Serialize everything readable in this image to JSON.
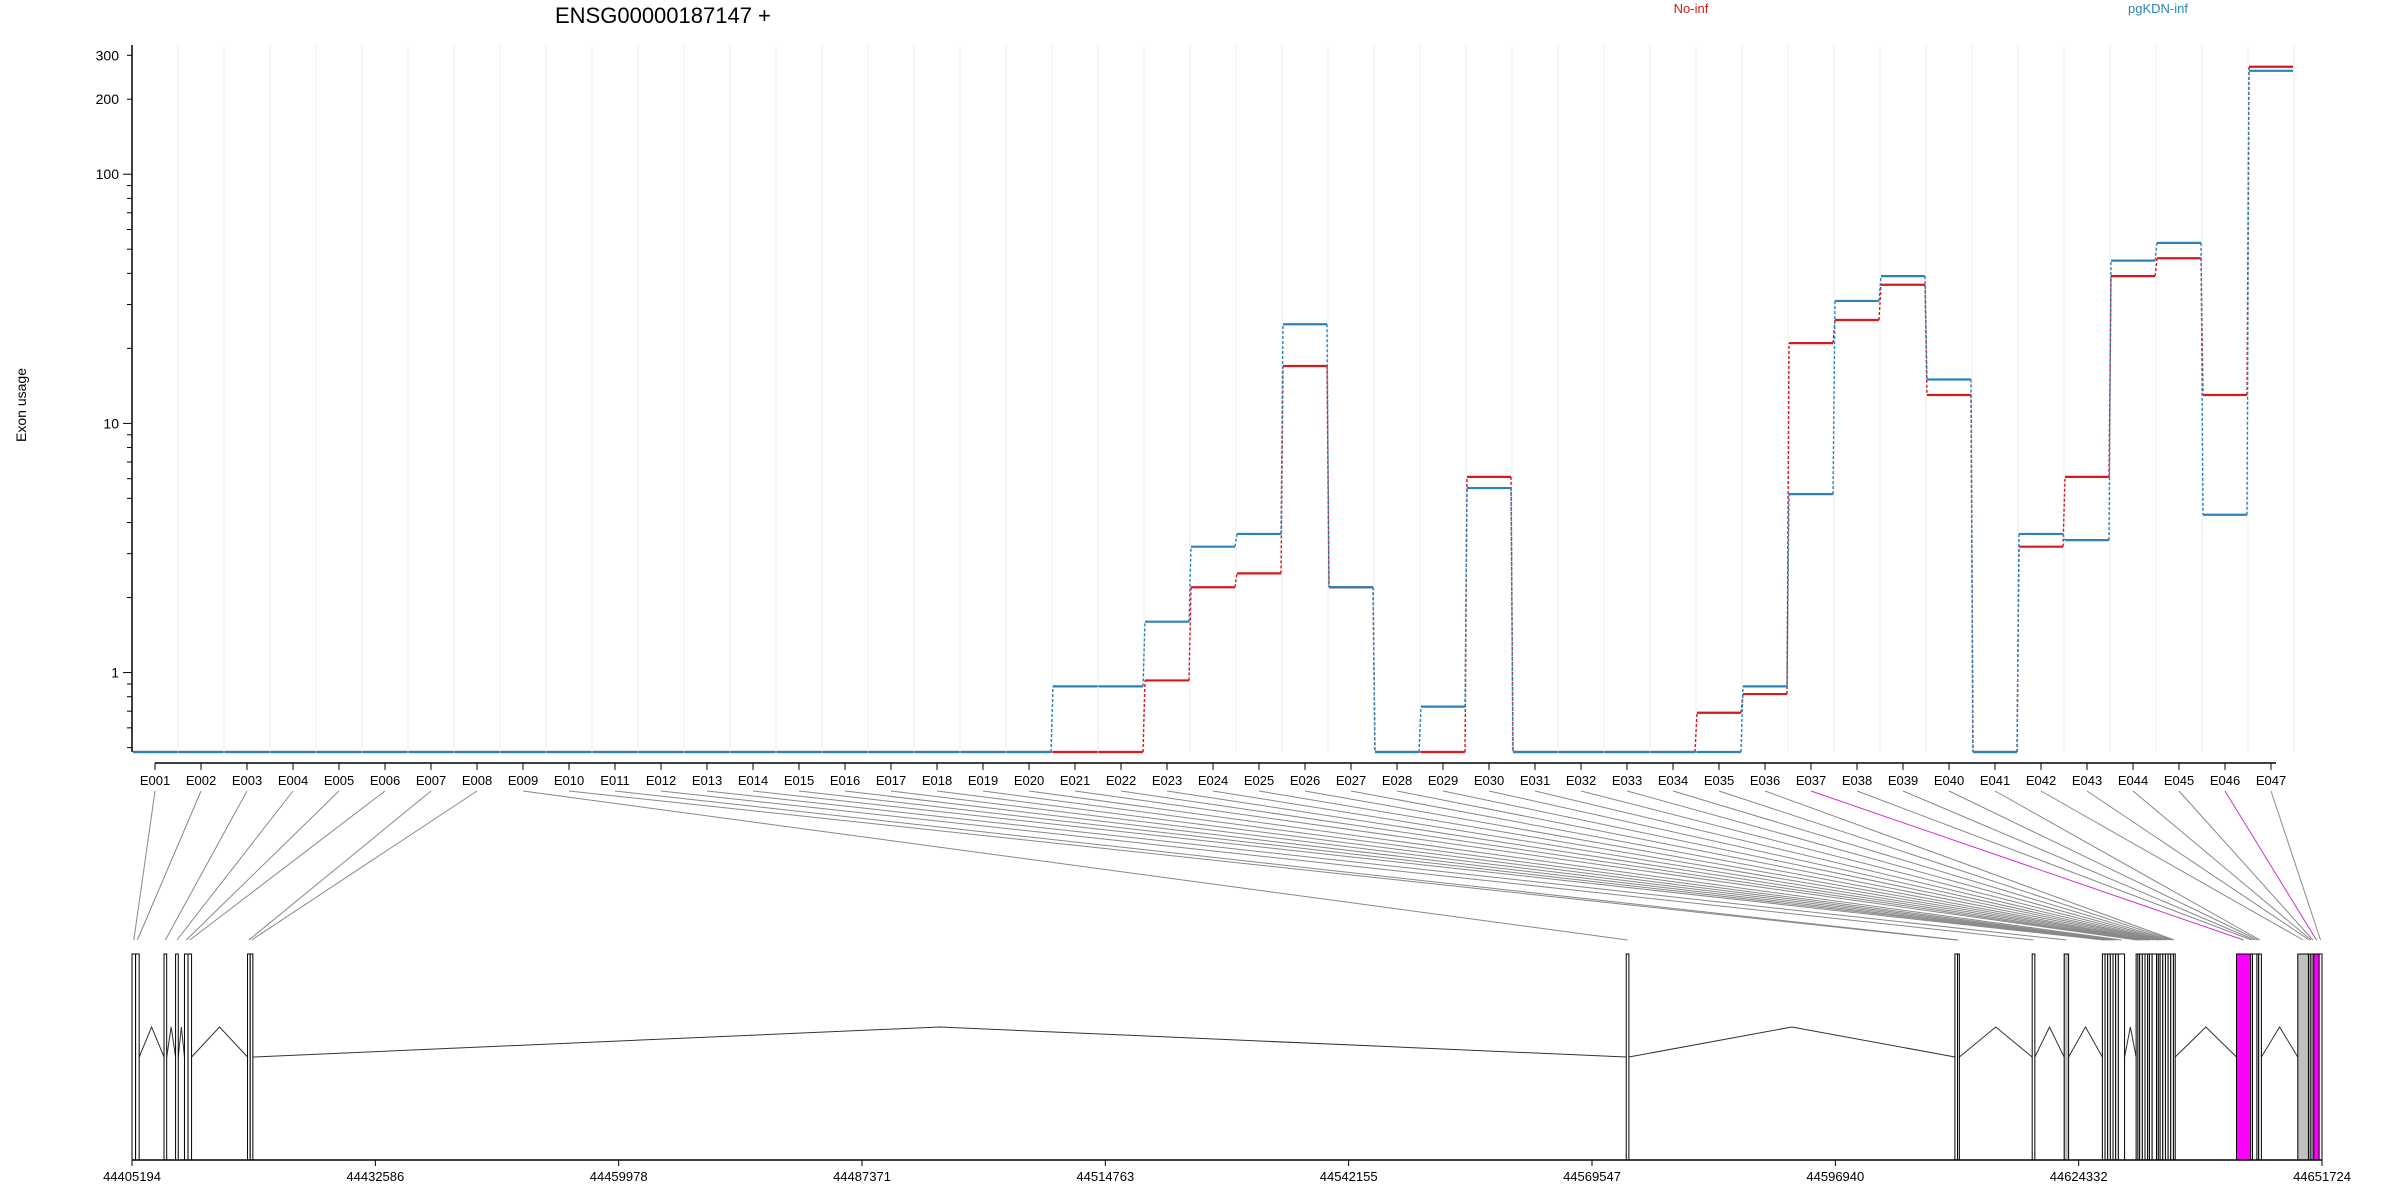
{
  "chart_data": {
    "type": "line",
    "title": "ENSG00000187147 +",
    "ylabel": "Exon usage",
    "xlabel": "",
    "y_scale": "log",
    "ylim": [
      0.48,
      330
    ],
    "y_ticks": [
      1,
      10,
      100,
      200,
      300
    ],
    "legend_placement": "top",
    "grid": true,
    "categories": [
      "E001",
      "E002",
      "E003",
      "E004",
      "E005",
      "E006",
      "E007",
      "E008",
      "E009",
      "E010",
      "E011",
      "E012",
      "E013",
      "E014",
      "E015",
      "E016",
      "E017",
      "E018",
      "E019",
      "E020",
      "E021",
      "E022",
      "E023",
      "E024",
      "E025",
      "E026",
      "E027",
      "E028",
      "E029",
      "E030",
      "E031",
      "E032",
      "E033",
      "E034",
      "E035",
      "E036",
      "E037",
      "E038",
      "E039",
      "E040",
      "E041",
      "E042",
      "E043",
      "E044",
      "E045",
      "E046",
      "E047"
    ],
    "series": [
      {
        "name": "No-inf",
        "color": "#d7191c",
        "values": [
          0.48,
          0.48,
          0.48,
          0.48,
          0.48,
          0.48,
          0.48,
          0.48,
          0.48,
          0.48,
          0.48,
          0.48,
          0.48,
          0.48,
          0.48,
          0.48,
          0.48,
          0.48,
          0.48,
          0.48,
          0.48,
          0.48,
          0.93,
          2.2,
          2.5,
          17,
          2.2,
          0.48,
          0.48,
          6.1,
          0.48,
          0.48,
          0.48,
          0.48,
          0.69,
          0.82,
          21,
          26,
          36,
          13,
          0.48,
          3.2,
          6.1,
          39,
          46,
          13,
          270
        ]
      },
      {
        "name": "pgKDN-inf",
        "color": "#2b83ba",
        "values": [
          0.48,
          0.48,
          0.48,
          0.48,
          0.48,
          0.48,
          0.48,
          0.48,
          0.48,
          0.48,
          0.48,
          0.48,
          0.48,
          0.48,
          0.48,
          0.48,
          0.48,
          0.48,
          0.48,
          0.48,
          0.88,
          0.88,
          1.6,
          3.2,
          3.6,
          25,
          2.2,
          0.48,
          0.73,
          5.5,
          0.48,
          0.48,
          0.48,
          0.48,
          0.48,
          0.88,
          5.2,
          31,
          39,
          15,
          0.48,
          3.6,
          3.4,
          45,
          53,
          4.3,
          260
        ]
      }
    ],
    "genomic_axis": {
      "tick_labels": [
        "44405194",
        "44432586",
        "44459978",
        "44487371",
        "44514763",
        "44542155",
        "44569547",
        "44596940",
        "44624332",
        "44651724"
      ],
      "range": [
        44405194,
        44651724
      ]
    },
    "exon_track": {
      "exons": [
        {
          "id": "E001",
          "start": 44405194,
          "end": 44405600
        },
        {
          "id": "E002",
          "start": 44405600,
          "end": 44406000
        },
        {
          "id": "E003",
          "start": 44408800,
          "end": 44409100
        },
        {
          "id": "E004",
          "start": 44410100,
          "end": 44410400
        },
        {
          "id": "E005",
          "start": 44411100,
          "end": 44411500
        },
        {
          "id": "E006",
          "start": 44411500,
          "end": 44411900
        },
        {
          "id": "E007",
          "start": 44418200,
          "end": 44418500
        },
        {
          "id": "E008",
          "start": 44418500,
          "end": 44418800
        },
        {
          "id": "E009",
          "start": 44573400,
          "end": 44573700
        },
        {
          "id": "E010",
          "start": 44610400,
          "end": 44610700
        },
        {
          "id": "E011",
          "start": 44610700,
          "end": 44610900
        },
        {
          "id": "E012",
          "start": 44619100,
          "end": 44619400
        },
        {
          "id": "E013",
          "start": 44622700,
          "end": 44623200
        },
        {
          "id": "E014",
          "start": 44627000,
          "end": 44627300
        },
        {
          "id": "E015",
          "start": 44627300,
          "end": 44627600
        },
        {
          "id": "E016",
          "start": 44627600,
          "end": 44627900
        },
        {
          "id": "E017",
          "start": 44627900,
          "end": 44628200
        },
        {
          "id": "E018",
          "start": 44628200,
          "end": 44628500
        },
        {
          "id": "E019",
          "start": 44628500,
          "end": 44628800
        },
        {
          "id": "E020",
          "start": 44628800,
          "end": 44629500
        },
        {
          "id": "E021",
          "start": 44630800,
          "end": 44631000
        },
        {
          "id": "E022",
          "start": 44631000,
          "end": 44631200
        },
        {
          "id": "E023",
          "start": 44631200,
          "end": 44631500
        },
        {
          "id": "E024",
          "start": 44631500,
          "end": 44631800
        },
        {
          "id": "E025",
          "start": 44631800,
          "end": 44632100
        },
        {
          "id": "E026",
          "start": 44632100,
          "end": 44632300
        },
        {
          "id": "E027",
          "start": 44632300,
          "end": 44632600
        },
        {
          "id": "E028",
          "start": 44632600,
          "end": 44633100
        },
        {
          "id": "E029",
          "start": 44633100,
          "end": 44633300
        },
        {
          "id": "E030",
          "start": 44633300,
          "end": 44633500
        },
        {
          "id": "E031",
          "start": 44633500,
          "end": 44633800
        },
        {
          "id": "E032",
          "start": 44633800,
          "end": 44634100
        },
        {
          "id": "E033",
          "start": 44634100,
          "end": 44634400
        },
        {
          "id": "E034",
          "start": 44634400,
          "end": 44634700
        },
        {
          "id": "E035",
          "start": 44634700,
          "end": 44635000
        },
        {
          "id": "E036",
          "start": 44635000,
          "end": 44635200
        },
        {
          "id": "E037",
          "start": 44642100,
          "end": 44643700
        },
        {
          "id": "E038",
          "start": 44643700,
          "end": 44643900
        },
        {
          "id": "E039",
          "start": 44643900,
          "end": 44644400
        },
        {
          "id": "E040",
          "start": 44644400,
          "end": 44644600
        },
        {
          "id": "E041",
          "start": 44644600,
          "end": 44644900
        },
        {
          "id": "E042",
          "start": 44649000,
          "end": 44650200
        },
        {
          "id": "E043",
          "start": 44650200,
          "end": 44650400
        },
        {
          "id": "E044",
          "start": 44650400,
          "end": 44650600
        },
        {
          "id": "E045",
          "start": 44650600,
          "end": 44650800
        },
        {
          "id": "E046",
          "start": 44650800,
          "end": 44651400
        },
        {
          "id": "E047",
          "start": 44651400,
          "end": 44651724
        }
      ],
      "highlighted_exons": [
        "E037",
        "E046"
      ],
      "shaded_exons": [
        "E013",
        "E042"
      ],
      "highlight_color": "#ff00ff",
      "shaded_color": "#c0c0c0"
    }
  }
}
